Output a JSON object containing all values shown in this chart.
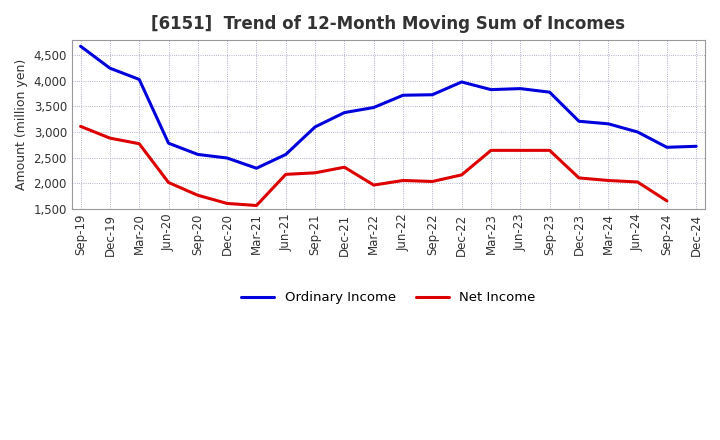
{
  "title": "[6151]  Trend of 12-Month Moving Sum of Incomes",
  "ylabel": "Amount (million yen)",
  "x_labels": [
    "Sep-19",
    "Dec-19",
    "Mar-20",
    "Jun-20",
    "Sep-20",
    "Dec-20",
    "Mar-21",
    "Jun-21",
    "Sep-21",
    "Dec-21",
    "Mar-22",
    "Jun-22",
    "Sep-22",
    "Dec-22",
    "Mar-23",
    "Jun-23",
    "Sep-23",
    "Dec-23",
    "Mar-24",
    "Jun-24",
    "Sep-24",
    "Dec-24"
  ],
  "ordinary_income": [
    4680,
    4250,
    4030,
    2780,
    2560,
    2490,
    2290,
    2560,
    3100,
    3380,
    3480,
    3720,
    3730,
    3980,
    3830,
    3850,
    3780,
    3210,
    3160,
    3000,
    2700,
    2720
  ],
  "net_income": [
    3110,
    2880,
    2770,
    2010,
    1760,
    1600,
    1560,
    2170,
    2200,
    2310,
    1960,
    2050,
    2030,
    2160,
    2640,
    2640,
    2640,
    2100,
    2050,
    2020,
    1650,
    null
  ],
  "ordinary_income_color": "#0000dd",
  "net_income_color": "#dd0000",
  "background_color": "#ffffff",
  "plot_bg_color": "#ffffff",
  "grid_color": "#9999bb",
  "ylim": [
    1500,
    4800
  ],
  "yticks": [
    1500,
    2000,
    2500,
    3000,
    3500,
    4000,
    4500
  ],
  "legend_ordinary": "Ordinary Income",
  "legend_net": "Net Income",
  "title_fontsize": 12,
  "title_color": "#333333",
  "axis_fontsize": 9,
  "tick_fontsize": 8.5,
  "legend_fontsize": 9.5,
  "line_width": 2.2
}
